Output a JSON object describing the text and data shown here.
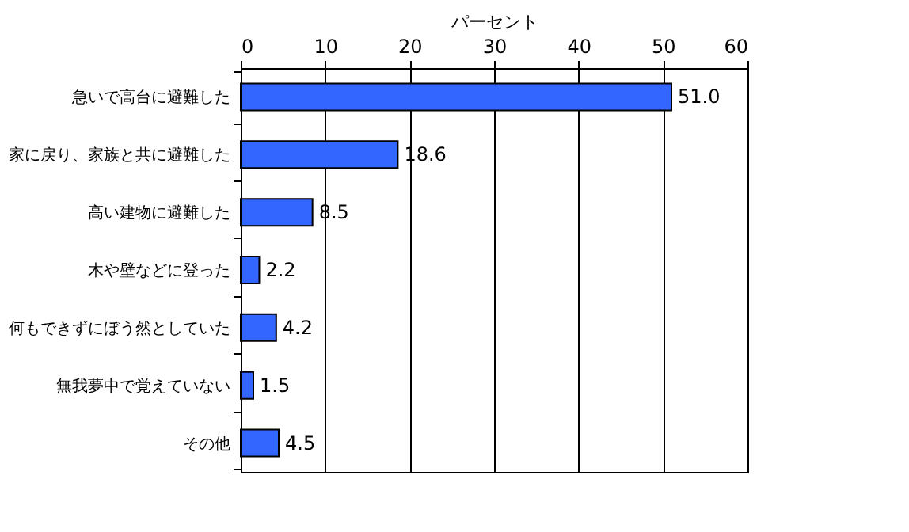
{
  "chart_data": {
    "type": "bar",
    "orientation": "horizontal",
    "xlabel": "パーセント",
    "categories": [
      "急いで高台に避難した",
      "家に戻り、家族と共に避難した",
      "高い建物に避難した",
      "木や壁などに登った",
      "何もできずにぼう然としていた",
      "無我夢中で覚えていない",
      "その他"
    ],
    "values": [
      51.0,
      18.6,
      8.5,
      2.2,
      4.2,
      1.5,
      4.5
    ],
    "value_labels": [
      "51.0",
      "18.6",
      "8.5",
      "2.2",
      "4.2",
      "1.5",
      "4.5"
    ],
    "color": "#3366ff",
    "xlim": [
      0,
      60
    ],
    "xticks": [
      0,
      10,
      20,
      30,
      40,
      50,
      60
    ],
    "grid": "x"
  }
}
